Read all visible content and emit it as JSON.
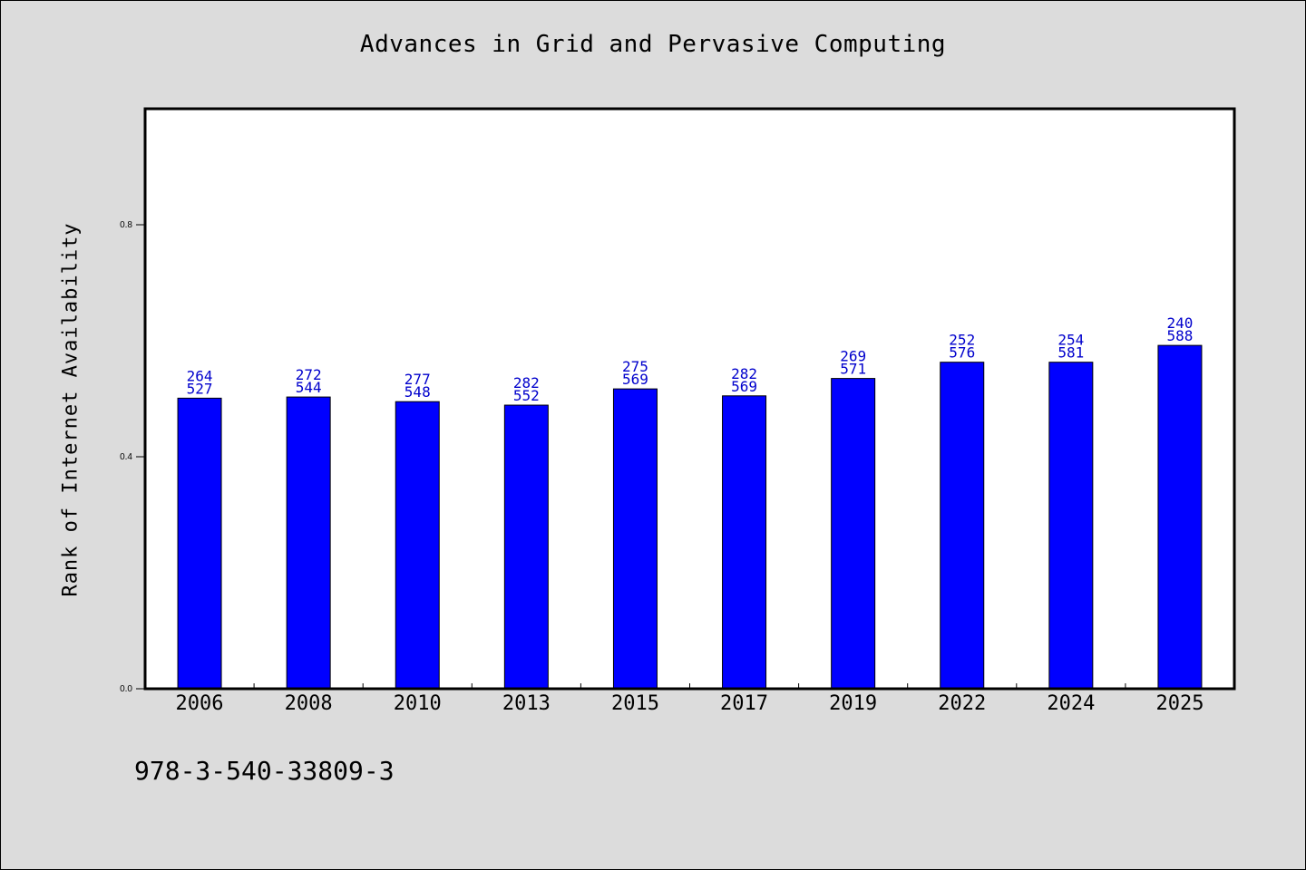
{
  "title": "Advances in Grid and Pervasive Computing",
  "footer_text": "978-3-540-33809-3",
  "colors": {
    "bar": "#0000ff",
    "bar_label": "#0000cc",
    "background": "#dcdcdc",
    "plot_background": "#ffffff"
  },
  "chart_data": {
    "type": "bar",
    "title": "Advances in Grid and Pervasive Computing",
    "xlabel": "",
    "ylabel": "Rank of Internet Availability",
    "ylim": [
      0,
      1.0
    ],
    "yticks": [
      0.0,
      0.4,
      0.8
    ],
    "ytick_labels": [
      "0.0",
      "0.4",
      "0.8"
    ],
    "grid": false,
    "categories": [
      "2006",
      "2008",
      "2010",
      "2013",
      "2015",
      "2017",
      "2019",
      "2022",
      "2024",
      "2025"
    ],
    "values": [
      0.501,
      0.503,
      0.495,
      0.489,
      0.517,
      0.505,
      0.535,
      0.563,
      0.563,
      0.592
    ],
    "bar_labels_top": [
      "264",
      "272",
      "277",
      "282",
      "275",
      "282",
      "269",
      "252",
      "254",
      "240"
    ],
    "bar_labels_bottom": [
      "527",
      "544",
      "548",
      "552",
      "569",
      "569",
      "571",
      "576",
      "581",
      "588"
    ]
  }
}
